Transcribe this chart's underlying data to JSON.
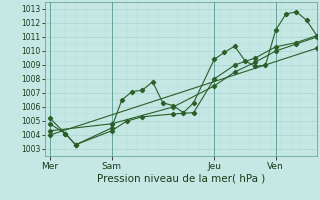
{
  "background_color": "#c5e8e5",
  "grid_color": "#b0d8d5",
  "line_color": "#2a5e2a",
  "ylim": [
    1002.5,
    1013.5
  ],
  "yticks": [
    1003,
    1004,
    1005,
    1006,
    1007,
    1008,
    1009,
    1010,
    1011,
    1012,
    1013
  ],
  "xlabel": "Pression niveau de la mer( hPa )",
  "xlabel_fontsize": 7.5,
  "xtick_labels": [
    "Mer",
    "Sam",
    "Jeu",
    "Ven"
  ],
  "xtick_positions": [
    0,
    24,
    64,
    88
  ],
  "xlim": [
    -2,
    104
  ],
  "vlines": [
    0,
    24,
    64,
    88
  ],
  "lines": [
    {
      "x": [
        0,
        6,
        10,
        24,
        28,
        32,
        36,
        40,
        44,
        48,
        52,
        56,
        64,
        68,
        72,
        76,
        80,
        84,
        88,
        92,
        96,
        100,
        104
      ],
      "y": [
        1005.2,
        1004.1,
        1003.3,
        1004.5,
        1006.5,
        1007.1,
        1007.2,
        1007.8,
        1006.3,
        1006.1,
        1005.6,
        1006.3,
        1009.4,
        1009.9,
        1010.35,
        1009.3,
        1008.9,
        1009.0,
        1011.5,
        1012.65,
        1012.8,
        1012.2,
        1011.1
      ]
    },
    {
      "x": [
        0,
        6,
        10,
        24,
        30,
        36,
        48,
        56,
        64,
        72,
        80,
        88,
        96,
        104
      ],
      "y": [
        1004.8,
        1004.1,
        1003.3,
        1004.3,
        1005.0,
        1005.3,
        1005.5,
        1005.6,
        1008.0,
        1009.0,
        1009.5,
        1010.3,
        1010.6,
        1011.1
      ]
    },
    {
      "x": [
        0,
        24,
        48,
        64,
        72,
        80,
        88,
        96,
        104
      ],
      "y": [
        1004.3,
        1004.8,
        1006.0,
        1007.5,
        1008.5,
        1009.2,
        1010.0,
        1010.5,
        1011.0
      ]
    },
    {
      "x": [
        0,
        104
      ],
      "y": [
        1004.0,
        1010.2
      ]
    }
  ],
  "marker": "D",
  "marker_size": 2.2,
  "linewidth": 0.8
}
